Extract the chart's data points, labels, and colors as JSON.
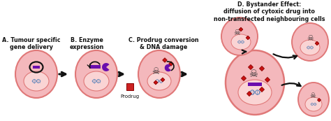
{
  "bg_color": "#ffffff",
  "cell_fill": "#f4b8bc",
  "cell_edge": "#e07878",
  "cell_inner_fill": "#fad4d4",
  "arrow_color": "#111111",
  "dna_color1": "#8899cc",
  "dna_color2": "#aabbdd",
  "enzyme_color": "#6a0dad",
  "prodrug_color": "#cc2222",
  "skull_color": "#777777",
  "diamond_color": "#cc1111",
  "label_color": "#111111",
  "labels": {
    "A": "A. Tumour specific\ngene delivery",
    "B": "B. Enzyme\nexpression",
    "C": "C. Prodrug conversion\n& DNA damage",
    "D": "D. Bystander Effect:\ndiffusion of cytoxic drug into\nnon-transfected neighbouring cells"
  },
  "label_fontsize": 5.8,
  "fig_width": 4.74,
  "fig_height": 1.73,
  "dpi": 100
}
